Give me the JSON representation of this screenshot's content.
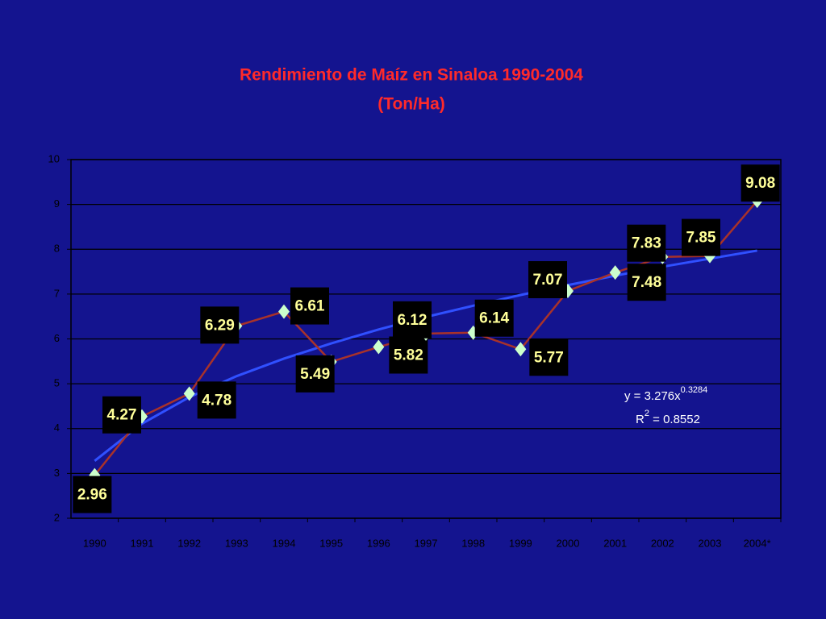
{
  "chart_data": {
    "type": "line",
    "title": "Rendimiento de Maíz en Sinaloa 1990-2004",
    "subtitle": "(Ton/Ha)",
    "categories": [
      "1990",
      "1991",
      "1992",
      "1993",
      "1994",
      "1995",
      "1996",
      "1997",
      "1998",
      "1999",
      "2000",
      "2001",
      "2002",
      "2003",
      "2004*"
    ],
    "series": [
      {
        "color": "#a8322a",
        "marker_color": "#ccffcc",
        "values": [
          2.96,
          4.27,
          4.78,
          6.29,
          6.61,
          5.49,
          5.82,
          6.12,
          6.14,
          5.77,
          7.07,
          7.48,
          7.83,
          7.85,
          9.08
        ]
      }
    ],
    "trendline": {
      "color": "#3050ff",
      "values": [
        3.28,
        4.11,
        4.7,
        5.17,
        5.56,
        5.9,
        6.21,
        6.49,
        6.74,
        6.98,
        7.2,
        7.41,
        7.61,
        7.79,
        7.97
      ],
      "equation": "y = 3.276x",
      "exponent": "0.3284",
      "r2_base": "R",
      "r2_sup": "2",
      "r2_rest": " = 0.8552"
    },
    "ylim": [
      2,
      10
    ],
    "yticks": [
      2,
      3,
      4,
      5,
      6,
      7,
      8,
      9,
      10
    ],
    "grid": true
  }
}
